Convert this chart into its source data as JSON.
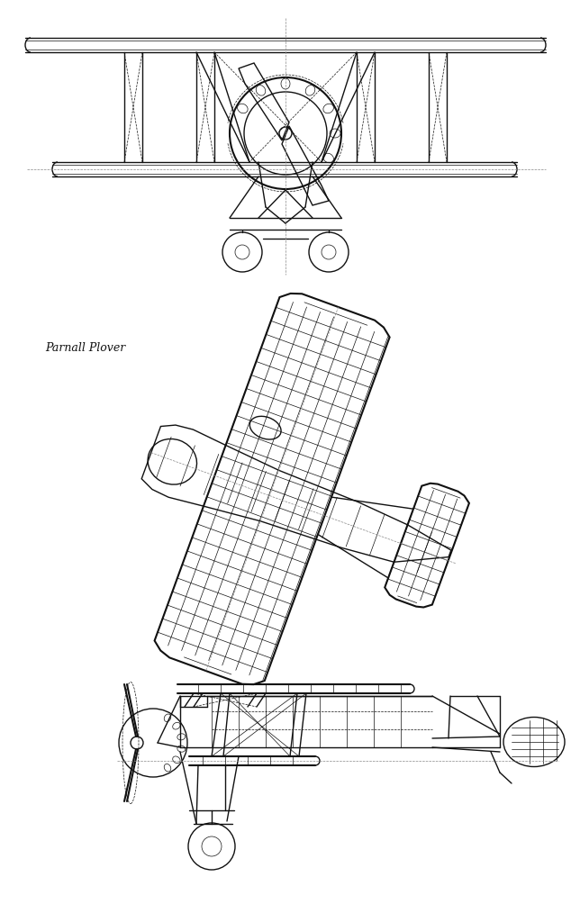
{
  "title": "Parnall Plover",
  "bg_color": "#ffffff",
  "line_color": "#111111",
  "line_width": 1.0,
  "thin_line": 0.5,
  "thick_line": 1.5,
  "label_fontsize": 9,
  "figsize": [
    6.34,
    10.24
  ],
  "dpi": 100
}
